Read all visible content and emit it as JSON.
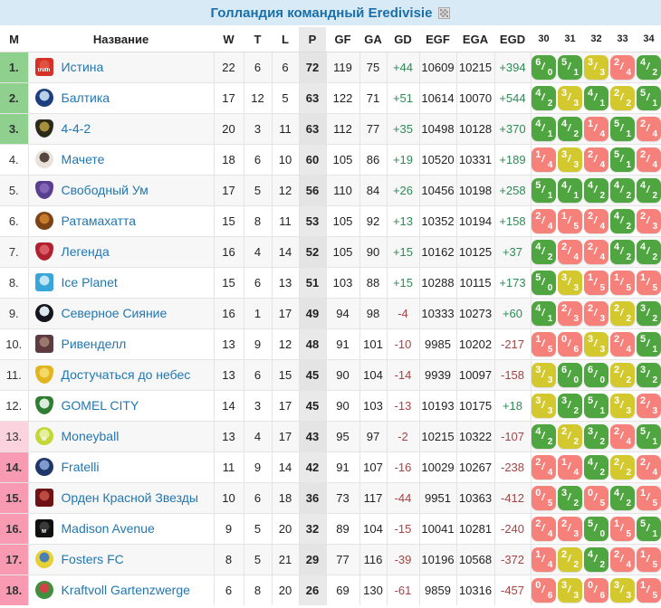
{
  "header": {
    "title": "Голландия командный Eredivisie",
    "flag_icon": "checkered-flag-icon"
  },
  "table": {
    "columns": {
      "place": "М",
      "name": "Название",
      "w": "W",
      "t": "T",
      "l": "L",
      "p": "P",
      "gf": "GF",
      "ga": "GA",
      "gd": "GD",
      "egf": "EGF",
      "ega": "EGA",
      "egd": "EGD",
      "rounds": [
        "30",
        "31",
        "32",
        "33",
        "34"
      ]
    },
    "legend_colors": {
      "win": "#4fa53f",
      "draw": "#d3c92f",
      "loss": "#f6817b",
      "top_zone_bg": "#8fd08f",
      "bottom_zone_bg": "#f79ab2",
      "bottom_zone_light_bg": "#fbd3de",
      "title_blue": "#1a6fa8",
      "team_link_blue": "#2077b2",
      "positive_text": "#2e8b57",
      "negative_text": "#a34444"
    },
    "rows": [
      {
        "place": "1.",
        "zone": "top",
        "team": "Истина",
        "icon": {
          "type": "square",
          "c1": "#d63126",
          "c2": "#e35142",
          "label": "truth"
        },
        "w": "22",
        "t": "6",
        "l": "6",
        "p": "72",
        "gf": "119",
        "ga": "75",
        "gd": "+44",
        "egf": "10609",
        "ega": "10215",
        "egd": "+394",
        "results": [
          {
            "score": "6/0",
            "outcome": "w"
          },
          {
            "score": "5/1",
            "outcome": "w"
          },
          {
            "score": "3/3",
            "outcome": "d"
          },
          {
            "score": "2/4",
            "outcome": "l"
          },
          {
            "score": "4/2",
            "outcome": "w"
          }
        ]
      },
      {
        "place": "2.",
        "zone": "top",
        "team": "Балтика",
        "icon": {
          "type": "circle",
          "c1": "#1d3e7e",
          "c2": "#b8cfe8",
          "label": ""
        },
        "w": "17",
        "t": "12",
        "l": "5",
        "p": "63",
        "gf": "122",
        "ga": "71",
        "gd": "+51",
        "egf": "10614",
        "ega": "10070",
        "egd": "+544",
        "results": [
          {
            "score": "4/2",
            "outcome": "w"
          },
          {
            "score": "3/3",
            "outcome": "d"
          },
          {
            "score": "4/1",
            "outcome": "w"
          },
          {
            "score": "2/2",
            "outcome": "d"
          },
          {
            "score": "5/1",
            "outcome": "w"
          }
        ]
      },
      {
        "place": "3.",
        "zone": "top",
        "team": "4-4-2",
        "icon": {
          "type": "shield",
          "c1": "#2c2a1a",
          "c2": "#a6903c",
          "label": ""
        },
        "w": "20",
        "t": "3",
        "l": "11",
        "p": "63",
        "gf": "112",
        "ga": "77",
        "gd": "+35",
        "egf": "10498",
        "ega": "10128",
        "egd": "+370",
        "results": [
          {
            "score": "4/1",
            "outcome": "w"
          },
          {
            "score": "4/2",
            "outcome": "w"
          },
          {
            "score": "1/4",
            "outcome": "l"
          },
          {
            "score": "5/1",
            "outcome": "w"
          },
          {
            "score": "2/4",
            "outcome": "l"
          }
        ]
      },
      {
        "place": "4.",
        "zone": "mid",
        "team": "Мачете",
        "icon": {
          "type": "circle",
          "c1": "#e9e2da",
          "c2": "#544741",
          "label": ""
        },
        "w": "18",
        "t": "6",
        "l": "10",
        "p": "60",
        "gf": "105",
        "ga": "86",
        "gd": "+19",
        "egf": "10520",
        "ega": "10331",
        "egd": "+189",
        "results": [
          {
            "score": "1/4",
            "outcome": "l"
          },
          {
            "score": "3/3",
            "outcome": "d"
          },
          {
            "score": "2/4",
            "outcome": "l"
          },
          {
            "score": "5/1",
            "outcome": "w"
          },
          {
            "score": "2/4",
            "outcome": "l"
          }
        ]
      },
      {
        "place": "5.",
        "zone": "mid",
        "team": "Свободный Ум",
        "icon": {
          "type": "shield",
          "c1": "#5a3f91",
          "c2": "#8266b5",
          "label": ""
        },
        "w": "17",
        "t": "5",
        "l": "12",
        "p": "56",
        "gf": "110",
        "ga": "84",
        "gd": "+26",
        "egf": "10456",
        "ega": "10198",
        "egd": "+258",
        "results": [
          {
            "score": "5/1",
            "outcome": "w"
          },
          {
            "score": "4/1",
            "outcome": "w"
          },
          {
            "score": "4/2",
            "outcome": "w"
          },
          {
            "score": "4/2",
            "outcome": "w"
          },
          {
            "score": "4/2",
            "outcome": "w"
          }
        ]
      },
      {
        "place": "6.",
        "zone": "mid",
        "team": "Ратамахатта",
        "icon": {
          "type": "circle",
          "c1": "#7c4316",
          "c2": "#c77c2b",
          "label": ""
        },
        "w": "15",
        "t": "8",
        "l": "11",
        "p": "53",
        "gf": "105",
        "ga": "92",
        "gd": "+13",
        "egf": "10352",
        "ega": "10194",
        "egd": "+158",
        "results": [
          {
            "score": "2/4",
            "outcome": "l"
          },
          {
            "score": "1/5",
            "outcome": "l"
          },
          {
            "score": "2/4",
            "outcome": "l"
          },
          {
            "score": "4/2",
            "outcome": "w"
          },
          {
            "score": "2/3",
            "outcome": "l"
          }
        ]
      },
      {
        "place": "7.",
        "zone": "mid",
        "team": "Легенда",
        "icon": {
          "type": "shield",
          "c1": "#b1202e",
          "c2": "#d95a67",
          "label": ""
        },
        "w": "16",
        "t": "4",
        "l": "14",
        "p": "52",
        "gf": "105",
        "ga": "90",
        "gd": "+15",
        "egf": "10162",
        "ega": "10125",
        "egd": "+37",
        "results": [
          {
            "score": "4/2",
            "outcome": "w"
          },
          {
            "score": "2/4",
            "outcome": "l"
          },
          {
            "score": "2/4",
            "outcome": "l"
          },
          {
            "score": "4/2",
            "outcome": "w"
          },
          {
            "score": "4/2",
            "outcome": "w"
          }
        ]
      },
      {
        "place": "8.",
        "zone": "mid",
        "team": "Ice Planet",
        "icon": {
          "type": "square",
          "c1": "#39a5d8",
          "c2": "#c2e6f6",
          "label": ""
        },
        "w": "15",
        "t": "6",
        "l": "13",
        "p": "51",
        "gf": "103",
        "ga": "88",
        "gd": "+15",
        "egf": "10288",
        "ega": "10115",
        "egd": "+173",
        "results": [
          {
            "score": "5/0",
            "outcome": "w"
          },
          {
            "score": "3/3",
            "outcome": "d"
          },
          {
            "score": "1/5",
            "outcome": "l"
          },
          {
            "score": "1/5",
            "outcome": "l"
          },
          {
            "score": "1/5",
            "outcome": "l"
          }
        ]
      },
      {
        "place": "9.",
        "zone": "mid",
        "team": "Северное Сияние",
        "icon": {
          "type": "circle",
          "c1": "#15151d",
          "c2": "#dfe7ee",
          "label": ""
        },
        "w": "16",
        "t": "1",
        "l": "17",
        "p": "49",
        "gf": "94",
        "ga": "98",
        "gd": "-4",
        "egf": "10333",
        "ega": "10273",
        "egd": "+60",
        "results": [
          {
            "score": "4/1",
            "outcome": "w"
          },
          {
            "score": "2/3",
            "outcome": "l"
          },
          {
            "score": "2/3",
            "outcome": "l"
          },
          {
            "score": "2/2",
            "outcome": "d"
          },
          {
            "score": "3/2",
            "outcome": "w"
          }
        ]
      },
      {
        "place": "10.",
        "zone": "mid",
        "team": "Ривенделл",
        "icon": {
          "type": "square",
          "c1": "#5d3b40",
          "c2": "#9b7a6e",
          "label": ""
        },
        "w": "13",
        "t": "9",
        "l": "12",
        "p": "48",
        "gf": "91",
        "ga": "101",
        "gd": "-10",
        "egf": "9985",
        "ega": "10202",
        "egd": "-217",
        "results": [
          {
            "score": "1/5",
            "outcome": "l"
          },
          {
            "score": "0/6",
            "outcome": "l"
          },
          {
            "score": "3/3",
            "outcome": "d"
          },
          {
            "score": "2/4",
            "outcome": "l"
          },
          {
            "score": "5/1",
            "outcome": "w"
          }
        ]
      },
      {
        "place": "11.",
        "zone": "mid",
        "team": "Достучаться до небес",
        "icon": {
          "type": "shield",
          "c1": "#e2b51e",
          "c2": "#f4d968",
          "label": ""
        },
        "w": "13",
        "t": "6",
        "l": "15",
        "p": "45",
        "gf": "90",
        "ga": "104",
        "gd": "-14",
        "egf": "9939",
        "ega": "10097",
        "egd": "-158",
        "results": [
          {
            "score": "3/3",
            "outcome": "d"
          },
          {
            "score": "6/0",
            "outcome": "w"
          },
          {
            "score": "6/0",
            "outcome": "w"
          },
          {
            "score": "2/2",
            "outcome": "d"
          },
          {
            "score": "3/2",
            "outcome": "w"
          }
        ]
      },
      {
        "place": "12.",
        "zone": "mid",
        "team": "GOMEL CITY",
        "icon": {
          "type": "shield",
          "c1": "#2f7d33",
          "c2": "#dcecdc",
          "label": ""
        },
        "w": "14",
        "t": "3",
        "l": "17",
        "p": "45",
        "gf": "90",
        "ga": "103",
        "gd": "-13",
        "egf": "10193",
        "ega": "10175",
        "egd": "+18",
        "results": [
          {
            "score": "3/3",
            "outcome": "d"
          },
          {
            "score": "3/2",
            "outcome": "w"
          },
          {
            "score": "5/1",
            "outcome": "w"
          },
          {
            "score": "3/3",
            "outcome": "d"
          },
          {
            "score": "2/3",
            "outcome": "l"
          }
        ]
      },
      {
        "place": "13.",
        "zone": "low-light",
        "team": "Moneyball",
        "icon": {
          "type": "circle",
          "c1": "#c3d838",
          "c2": "#e4efa0",
          "label": "M"
        },
        "w": "13",
        "t": "4",
        "l": "17",
        "p": "43",
        "gf": "95",
        "ga": "97",
        "gd": "-2",
        "egf": "10215",
        "ega": "10322",
        "egd": "-107",
        "results": [
          {
            "score": "4/2",
            "outcome": "w"
          },
          {
            "score": "2/2",
            "outcome": "d"
          },
          {
            "score": "3/2",
            "outcome": "w"
          },
          {
            "score": "2/4",
            "outcome": "l"
          },
          {
            "score": "5/1",
            "outcome": "w"
          }
        ]
      },
      {
        "place": "14.",
        "zone": "low",
        "team": "Fratelli",
        "icon": {
          "type": "circle",
          "c1": "#1e3668",
          "c2": "#7e9bcb",
          "label": ""
        },
        "w": "11",
        "t": "9",
        "l": "14",
        "p": "42",
        "gf": "91",
        "ga": "107",
        "gd": "-16",
        "egf": "10029",
        "ega": "10267",
        "egd": "-238",
        "results": [
          {
            "score": "2/4",
            "outcome": "l"
          },
          {
            "score": "1/4",
            "outcome": "l"
          },
          {
            "score": "4/2",
            "outcome": "w"
          },
          {
            "score": "2/2",
            "outcome": "d"
          },
          {
            "score": "2/4",
            "outcome": "l"
          }
        ]
      },
      {
        "place": "15.",
        "zone": "low",
        "team": "Орден Красной Звезды",
        "icon": {
          "type": "square",
          "c1": "#6e1214",
          "c2": "#bc4a42",
          "label": ""
        },
        "w": "10",
        "t": "6",
        "l": "18",
        "p": "36",
        "gf": "73",
        "ga": "117",
        "gd": "-44",
        "egf": "9951",
        "ega": "10363",
        "egd": "-412",
        "results": [
          {
            "score": "0/5",
            "outcome": "l"
          },
          {
            "score": "3/2",
            "outcome": "w"
          },
          {
            "score": "0/5",
            "outcome": "l"
          },
          {
            "score": "4/2",
            "outcome": "w"
          },
          {
            "score": "1/5",
            "outcome": "l"
          }
        ]
      },
      {
        "place": "16.",
        "zone": "low",
        "team": "Madison Avenue",
        "icon": {
          "type": "square",
          "c1": "#101010",
          "c2": "#3a3a3a",
          "label": "M"
        },
        "w": "9",
        "t": "5",
        "l": "20",
        "p": "32",
        "gf": "89",
        "ga": "104",
        "gd": "-15",
        "egf": "10041",
        "ega": "10281",
        "egd": "-240",
        "results": [
          {
            "score": "2/4",
            "outcome": "l"
          },
          {
            "score": "2/3",
            "outcome": "l"
          },
          {
            "score": "5/0",
            "outcome": "w"
          },
          {
            "score": "1/5",
            "outcome": "l"
          },
          {
            "score": "5/1",
            "outcome": "w"
          }
        ]
      },
      {
        "place": "17.",
        "zone": "low",
        "team": "Fosters FC",
        "icon": {
          "type": "circle",
          "c1": "#e7cf35",
          "c2": "#4a80b4",
          "label": ""
        },
        "w": "8",
        "t": "5",
        "l": "21",
        "p": "29",
        "gf": "77",
        "ga": "116",
        "gd": "-39",
        "egf": "10196",
        "ega": "10568",
        "egd": "-372",
        "results": [
          {
            "score": "1/4",
            "outcome": "l"
          },
          {
            "score": "2/2",
            "outcome": "d"
          },
          {
            "score": "4/2",
            "outcome": "w"
          },
          {
            "score": "2/4",
            "outcome": "l"
          },
          {
            "score": "1/5",
            "outcome": "l"
          }
        ]
      },
      {
        "place": "18.",
        "zone": "low",
        "team": "Kraftvoll Gartenzwerge",
        "icon": {
          "type": "circle",
          "c1": "#3f8f3f",
          "c2": "#cf4444",
          "label": ""
        },
        "w": "6",
        "t": "8",
        "l": "20",
        "p": "26",
        "gf": "69",
        "ga": "130",
        "gd": "-61",
        "egf": "9859",
        "ega": "10316",
        "egd": "-457",
        "results": [
          {
            "score": "0/6",
            "outcome": "l"
          },
          {
            "score": "3/3",
            "outcome": "d"
          },
          {
            "score": "0/6",
            "outcome": "l"
          },
          {
            "score": "3/3",
            "outcome": "d"
          },
          {
            "score": "1/5",
            "outcome": "l"
          }
        ]
      }
    ]
  }
}
